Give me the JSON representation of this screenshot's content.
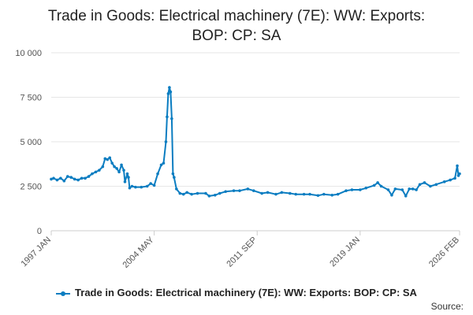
{
  "chart_data": {
    "type": "line",
    "title_lines": [
      "Trade in Goods: Electrical machinery (7E): WW: Exports:",
      "BOP: CP: SA"
    ],
    "xlabel": "",
    "ylabel": "",
    "ylim": [
      0,
      10000
    ],
    "yticks": [
      0,
      2500,
      5000,
      7500,
      10000
    ],
    "ytick_labels": [
      "0",
      "2 500",
      "5 000",
      "7 500",
      "10 000"
    ],
    "xlim": [
      "1997-01",
      "2026-02"
    ],
    "xticks": [
      "1997-01",
      "2004-05",
      "2011-09",
      "2019-01",
      "2026-02"
    ],
    "xtick_labels": [
      "1997 JAN",
      "2004 MAY",
      "2011 SEP",
      "2019 JAN",
      "2026 FEB"
    ],
    "grid": true,
    "legend_position": "bottom",
    "series": [
      {
        "name": "Trade in Goods: Electrical machinery (7E): WW: Exports: BOP: CP: SA",
        "color": "#0b7dc1",
        "points": [
          [
            "1997-01",
            2900
          ],
          [
            "1997-03",
            2950
          ],
          [
            "1997-06",
            2850
          ],
          [
            "1997-09",
            2950
          ],
          [
            "1997-12",
            2800
          ],
          [
            "1998-03",
            3050
          ],
          [
            "1998-06",
            3000
          ],
          [
            "1998-09",
            2900
          ],
          [
            "1998-12",
            2850
          ],
          [
            "1999-03",
            2950
          ],
          [
            "1999-06",
            2950
          ],
          [
            "1999-09",
            3050
          ],
          [
            "1999-12",
            3200
          ],
          [
            "2000-03",
            3300
          ],
          [
            "2000-06",
            3400
          ],
          [
            "2000-09",
            3600
          ],
          [
            "2000-11",
            4050
          ],
          [
            "2001-01",
            4000
          ],
          [
            "2001-03",
            4100
          ],
          [
            "2001-05",
            3800
          ],
          [
            "2001-07",
            3600
          ],
          [
            "2001-09",
            3500
          ],
          [
            "2001-11",
            3300
          ],
          [
            "2002-01",
            3700
          ],
          [
            "2002-03",
            3400
          ],
          [
            "2002-04",
            2750
          ],
          [
            "2002-06",
            3200
          ],
          [
            "2002-07",
            3000
          ],
          [
            "2002-08",
            2400
          ],
          [
            "2002-10",
            2500
          ],
          [
            "2003-01",
            2450
          ],
          [
            "2003-06",
            2450
          ],
          [
            "2003-11",
            2500
          ],
          [
            "2004-02",
            2650
          ],
          [
            "2004-05",
            2550
          ],
          [
            "2004-08",
            3200
          ],
          [
            "2004-11",
            3700
          ],
          [
            "2005-01",
            3800
          ],
          [
            "2005-03",
            5000
          ],
          [
            "2005-04",
            6400
          ],
          [
            "2005-05",
            7700
          ],
          [
            "2005-06",
            8050
          ],
          [
            "2005-07",
            7800
          ],
          [
            "2005-08",
            6300
          ],
          [
            "2005-09",
            3200
          ],
          [
            "2005-10",
            3000
          ],
          [
            "2005-12",
            2350
          ],
          [
            "2006-03",
            2100
          ],
          [
            "2006-06",
            2050
          ],
          [
            "2006-09",
            2150
          ],
          [
            "2007-01",
            2050
          ],
          [
            "2007-06",
            2100
          ],
          [
            "2008-01",
            2100
          ],
          [
            "2008-04",
            1950
          ],
          [
            "2008-09",
            2000
          ],
          [
            "2009-01",
            2100
          ],
          [
            "2009-06",
            2200
          ],
          [
            "2010-01",
            2250
          ],
          [
            "2010-06",
            2250
          ],
          [
            "2011-01",
            2350
          ],
          [
            "2011-06",
            2250
          ],
          [
            "2012-01",
            2100
          ],
          [
            "2012-06",
            2150
          ],
          [
            "2013-01",
            2050
          ],
          [
            "2013-06",
            2150
          ],
          [
            "2014-01",
            2100
          ],
          [
            "2014-06",
            2050
          ],
          [
            "2015-01",
            2050
          ],
          [
            "2015-06",
            2050
          ],
          [
            "2016-01",
            1980
          ],
          [
            "2016-06",
            2050
          ],
          [
            "2017-01",
            2000
          ],
          [
            "2017-06",
            2050
          ],
          [
            "2018-01",
            2250
          ],
          [
            "2018-06",
            2300
          ],
          [
            "2019-01",
            2300
          ],
          [
            "2019-06",
            2400
          ],
          [
            "2020-01",
            2550
          ],
          [
            "2020-04",
            2700
          ],
          [
            "2020-07",
            2500
          ],
          [
            "2021-01",
            2300
          ],
          [
            "2021-04",
            2000
          ],
          [
            "2021-07",
            2350
          ],
          [
            "2022-01",
            2300
          ],
          [
            "2022-04",
            1950
          ],
          [
            "2022-07",
            2350
          ],
          [
            "2022-10",
            2350
          ],
          [
            "2023-01",
            2300
          ],
          [
            "2023-04",
            2600
          ],
          [
            "2023-08",
            2700
          ],
          [
            "2024-01",
            2500
          ],
          [
            "2024-06",
            2600
          ],
          [
            "2025-01",
            2750
          ],
          [
            "2025-06",
            2850
          ],
          [
            "2025-10",
            2950
          ],
          [
            "2025-12",
            3650
          ],
          [
            "2026-01",
            3100
          ],
          [
            "2026-02",
            3200
          ]
        ]
      }
    ]
  },
  "source_label": "Source:"
}
